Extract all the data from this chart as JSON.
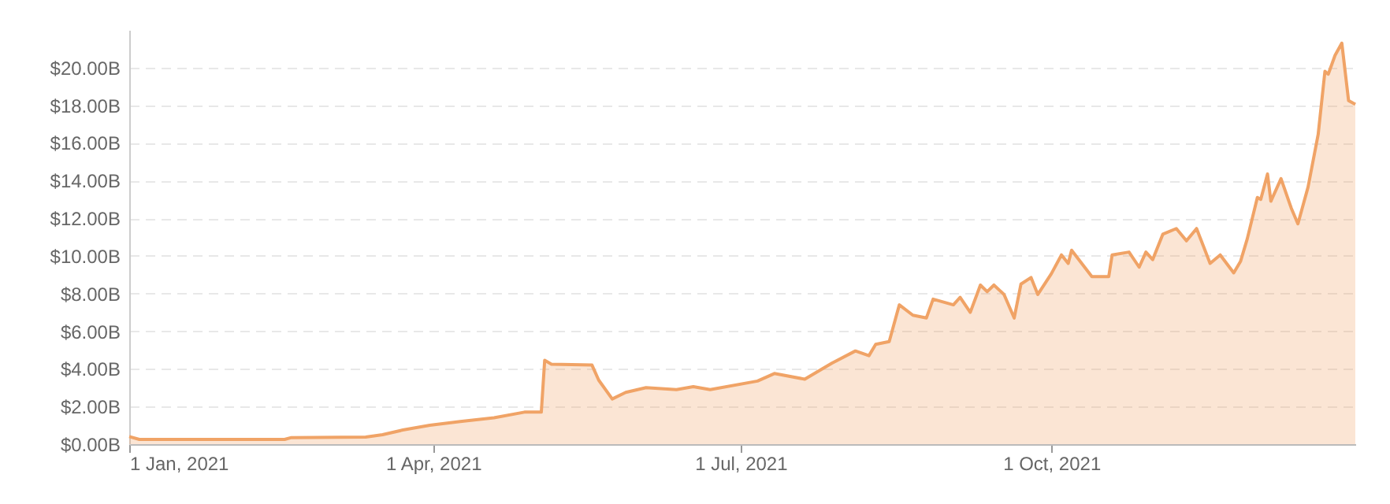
{
  "chart_data": {
    "type": "area",
    "x": [
      "2021-01-01",
      "2021-01-04",
      "2021-02-16",
      "2021-02-18",
      "2021-03-12",
      "2021-03-17",
      "2021-03-23",
      "2021-03-31",
      "2021-04-09",
      "2021-04-19",
      "2021-04-28",
      "2021-05-03",
      "2021-05-04",
      "2021-05-06",
      "2021-05-18",
      "2021-05-20",
      "2021-05-24",
      "2021-05-28",
      "2021-06-03",
      "2021-06-12",
      "2021-06-17",
      "2021-06-22",
      "2021-07-06",
      "2021-07-11",
      "2021-07-20",
      "2021-07-28",
      "2021-08-04",
      "2021-08-08",
      "2021-08-10",
      "2021-08-14",
      "2021-08-17",
      "2021-08-21",
      "2021-08-25",
      "2021-08-27",
      "2021-09-02",
      "2021-09-04",
      "2021-09-07",
      "2021-09-10",
      "2021-09-12",
      "2021-09-14",
      "2021-09-17",
      "2021-09-20",
      "2021-09-22",
      "2021-09-25",
      "2021-09-27",
      "2021-10-01",
      "2021-10-04",
      "2021-10-06",
      "2021-10-07",
      "2021-10-13",
      "2021-10-18",
      "2021-10-19",
      "2021-10-24",
      "2021-10-27",
      "2021-10-29",
      "2021-10-31",
      "2021-11-03",
      "2021-11-07",
      "2021-11-10",
      "2021-11-13",
      "2021-11-17",
      "2021-11-20",
      "2021-11-24",
      "2021-11-26",
      "2021-11-28",
      "2021-12-01",
      "2021-12-02",
      "2021-12-04",
      "2021-12-05",
      "2021-12-08",
      "2021-12-11",
      "2021-12-13",
      "2021-12-16",
      "2021-12-19",
      "2021-12-21",
      "2021-12-22",
      "2021-12-24",
      "2021-12-26",
      "2021-12-28",
      "2021-12-30"
    ],
    "series": [
      {
        "color": "#f0a366",
        "values": [
          0.4,
          0.25,
          0.25,
          0.35,
          0.38,
          0.5,
          0.75,
          1.0,
          1.2,
          1.4,
          1.7,
          1.7,
          4.45,
          4.25,
          4.2,
          3.4,
          2.4,
          2.75,
          3.0,
          2.9,
          3.05,
          2.9,
          3.35,
          3.75,
          3.45,
          4.3,
          4.95,
          4.7,
          5.3,
          5.45,
          7.4,
          6.85,
          6.7,
          7.7,
          7.4,
          7.8,
          7.0,
          8.45,
          8.1,
          8.45,
          7.95,
          6.7,
          8.5,
          8.85,
          7.95,
          9.05,
          10.05,
          9.6,
          10.3,
          8.9,
          8.9,
          10.05,
          10.2,
          9.4,
          10.2,
          9.8,
          11.15,
          11.45,
          10.8,
          11.45,
          9.6,
          10.05,
          9.1,
          9.7,
          10.9,
          13.1,
          13.0,
          14.35,
          12.9,
          14.1,
          12.55,
          11.7,
          13.65,
          16.45,
          19.8,
          19.65,
          20.65,
          21.3,
          18.25,
          18.05
        ]
      }
    ],
    "xlim": [
      "2021-01-01",
      "2021-12-30"
    ],
    "xticks": [
      {
        "value": "2021-01-01",
        "label": "1 Jan, 2021"
      },
      {
        "value": "2021-04-01",
        "label": "1 Apr, 2021"
      },
      {
        "value": "2021-07-01",
        "label": "1 Jul, 2021"
      },
      {
        "value": "2021-10-01",
        "label": "1 Oct, 2021"
      }
    ],
    "yticks": [
      {
        "value": 0,
        "label": "$0.00B"
      },
      {
        "value": 2,
        "label": "$2.00B"
      },
      {
        "value": 4,
        "label": "$4.00B"
      },
      {
        "value": 6,
        "label": "$6.00B"
      },
      {
        "value": 8,
        "label": "$8.00B"
      },
      {
        "value": 10,
        "label": "$10.00B"
      },
      {
        "value": 12,
        "label": "$12.00B"
      },
      {
        "value": 14,
        "label": "$14.00B"
      },
      {
        "value": 16,
        "label": "$16.00B"
      },
      {
        "value": 18,
        "label": "$18.00B"
      },
      {
        "value": 20,
        "label": "$20.00B"
      }
    ],
    "ylim": [
      0,
      22
    ],
    "grid": "y"
  }
}
